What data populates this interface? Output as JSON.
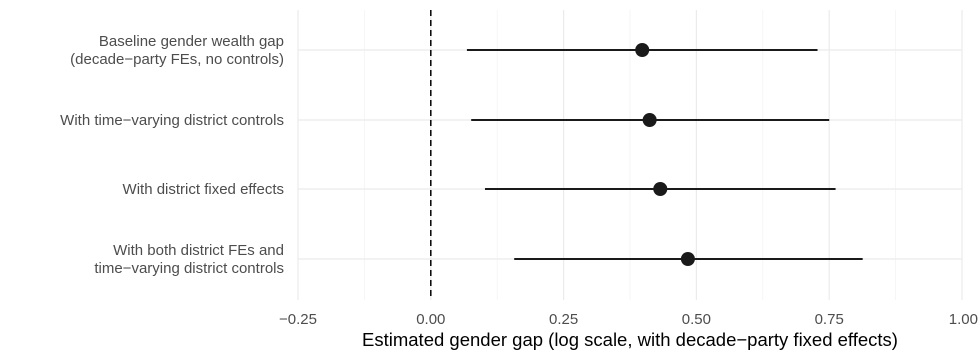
{
  "chart_data": {
    "type": "coefficient-plot",
    "title": "",
    "xlabel": "Estimated gender gap (log scale, with decade−party fixed effects)",
    "ylabel": "",
    "xlim": [
      -0.25,
      1.0
    ],
    "x_ticks": [
      {
        "value": -0.25,
        "label": "−0.25"
      },
      {
        "value": 0.0,
        "label": "0.00"
      },
      {
        "value": 0.25,
        "label": "0.25"
      },
      {
        "value": 0.5,
        "label": "0.50"
      },
      {
        "value": 0.75,
        "label": "0.75"
      },
      {
        "value": 1.0,
        "label": "1.00"
      }
    ],
    "reference_line": {
      "x": 0.0,
      "style": "dashed"
    },
    "grid": true,
    "categories": [
      {
        "lines": [
          "Baseline gender wealth gap",
          "(decade−party FEs, no controls)"
        ],
        "estimate": 0.398,
        "lower": 0.068,
        "upper": 0.728
      },
      {
        "lines": [
          "With time−varying district controls"
        ],
        "estimate": 0.412,
        "lower": 0.076,
        "upper": 0.75
      },
      {
        "lines": [
          "With district fixed effects"
        ],
        "estimate": 0.432,
        "lower": 0.102,
        "upper": 0.762
      },
      {
        "lines": [
          "With both district FEs and",
          "time−varying district controls"
        ],
        "estimate": 0.484,
        "lower": 0.157,
        "upper": 0.813
      }
    ],
    "colors": {
      "point": "#1a1a1a",
      "interval": "#1a1a1a",
      "grid_major": "#ebebeb",
      "grid_minor": "#f4f4f4",
      "reference_line": "#000000"
    }
  }
}
